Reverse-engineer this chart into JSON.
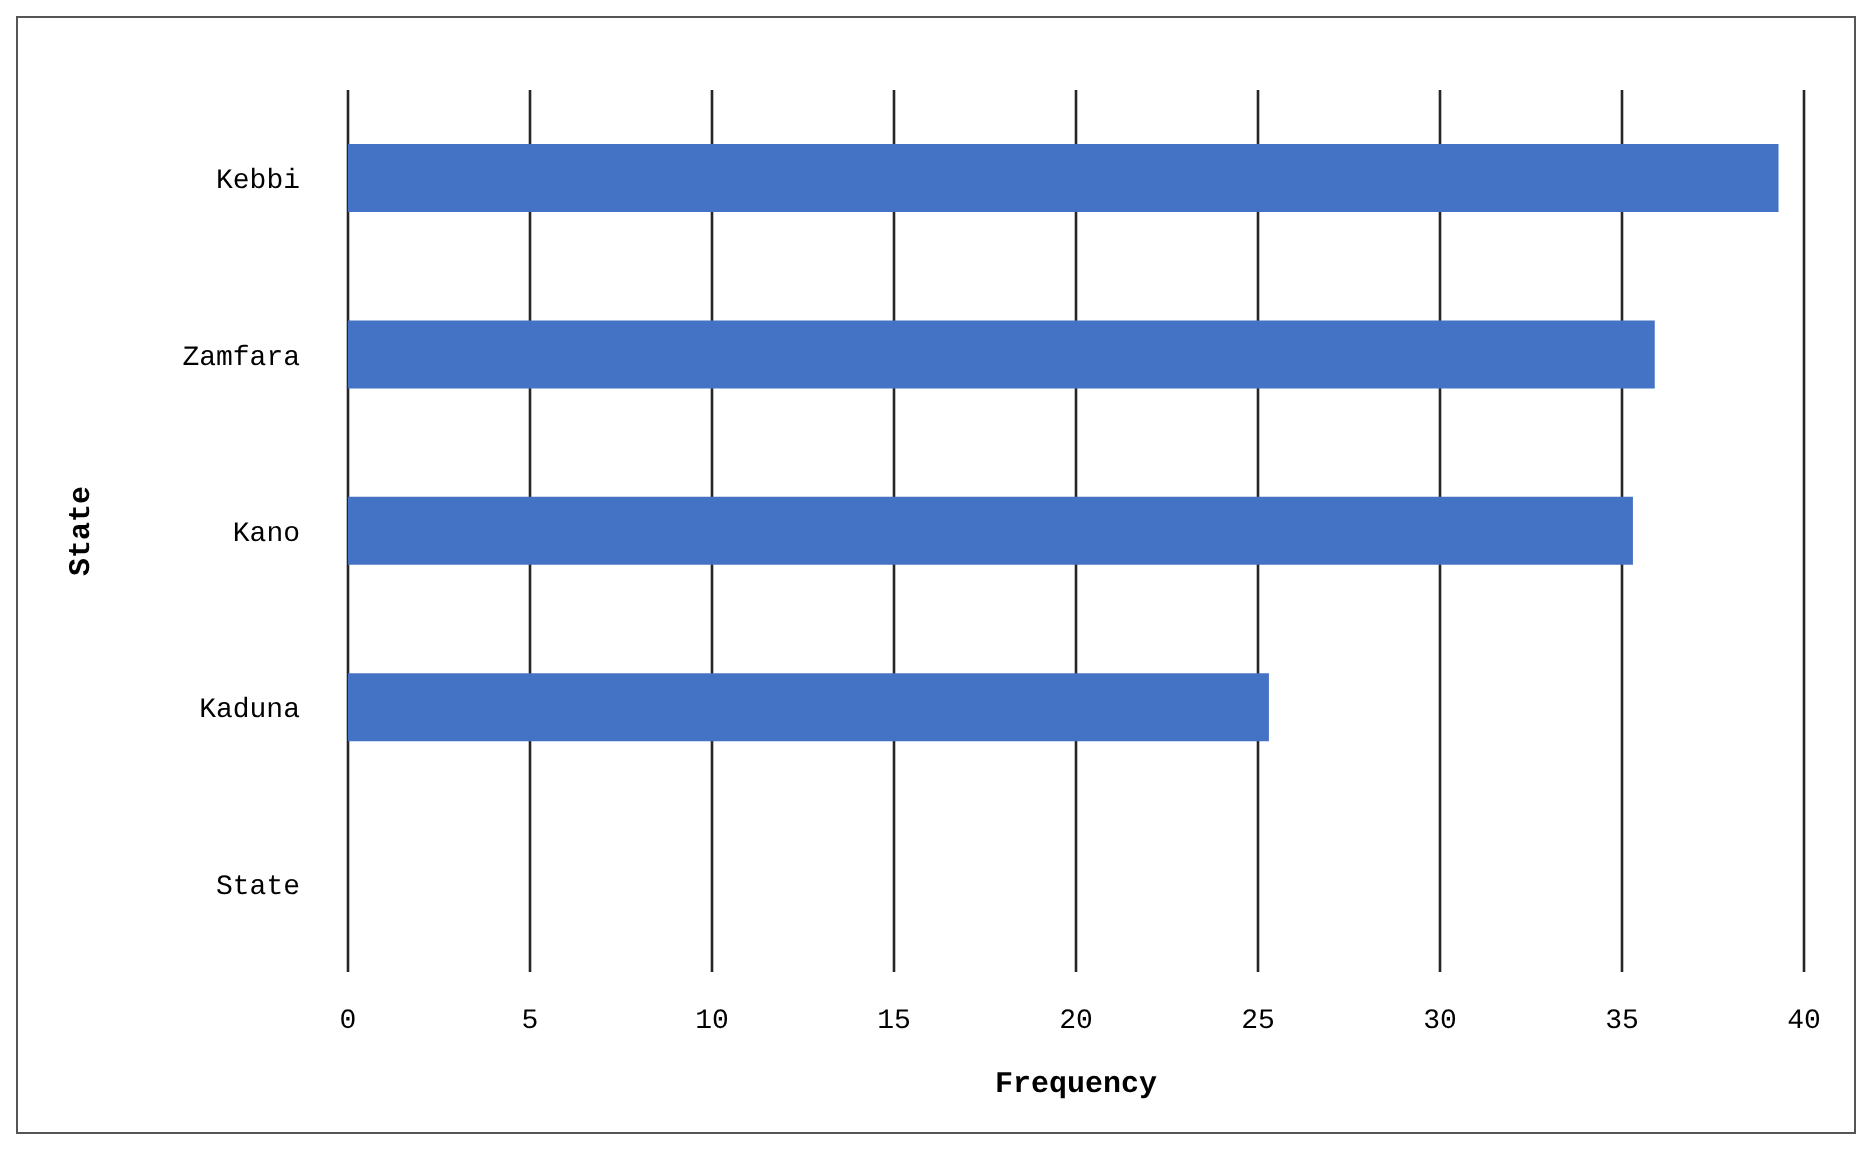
{
  "chart_data": {
    "type": "bar",
    "orientation": "horizontal",
    "xlabel": "Frequency",
    "ylabel": "State",
    "categories": [
      "Kebbi",
      "Zamfara",
      "Kano",
      "Kaduna",
      "State"
    ],
    "values": [
      39.3,
      35.9,
      35.3,
      25.3,
      null
    ],
    "color": "#4472c4",
    "xlim": [
      0,
      40
    ],
    "xticks": [
      0,
      5,
      10,
      15,
      20,
      25,
      30,
      35,
      40
    ],
    "grid": "x"
  }
}
